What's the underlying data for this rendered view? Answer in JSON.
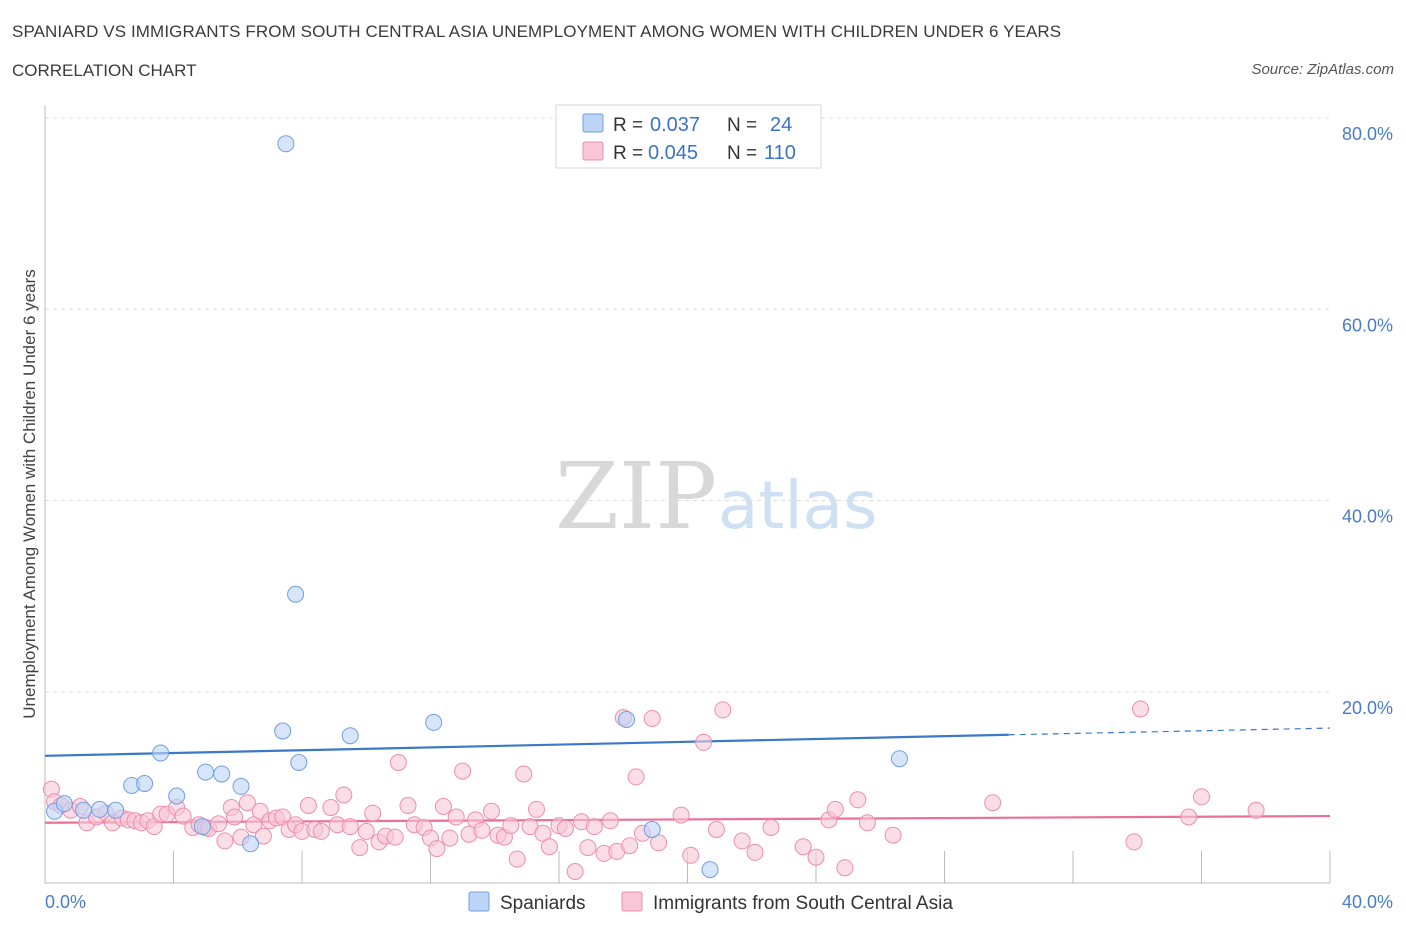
{
  "header": {
    "title": "SPANIARD VS IMMIGRANTS FROM SOUTH CENTRAL ASIA UNEMPLOYMENT AMONG WOMEN WITH CHILDREN UNDER 6 YEARS",
    "subtitle": "CORRELATION CHART",
    "source": "Source: ZipAtlas.com"
  },
  "watermark": {
    "zip": "ZIP",
    "atlas": "atlas"
  },
  "legend": {
    "rows": [
      {
        "r_label": "R = ",
        "r_value": "0.037",
        "n_label": "N = ",
        "n_value": "24"
      },
      {
        "r_label": "R = ",
        "r_value": "0.045",
        "n_label": "N = ",
        "n_value": "110"
      }
    ]
  },
  "colors": {
    "spaniards_fill": "#bcd4f6",
    "spaniards_stroke": "#6f9fe0",
    "spaniards_line": "#3a78c8",
    "immigrants_fill": "#f8c6d6",
    "immigrants_stroke": "#ec8fac",
    "immigrants_line": "#e8709a",
    "grid": "#dddddd",
    "tick": "#4a7cc9"
  },
  "chart_data": {
    "type": "scatter",
    "xlabel": "",
    "ylabel": "Unemployment Among Women with Children Under 6 years",
    "xlim": [
      0,
      40
    ],
    "ylim": [
      0,
      80
    ],
    "x_tick_labels": [
      "0.0%",
      "40.0%"
    ],
    "y_ticks": [
      20,
      40,
      60,
      80
    ],
    "y_tick_labels": [
      "20.0%",
      "40.0%",
      "60.0%",
      "80.0%"
    ],
    "grid": true,
    "legend_position": "top-center",
    "series": [
      {
        "name": "Spaniards",
        "r": 0.037,
        "n": 24,
        "trend": {
          "x_start": 0,
          "y_start": 13.3,
          "x_solid_end": 30,
          "y_solid_end": 15.5,
          "x_end": 40,
          "y_end": 16.2
        },
        "points": [
          [
            0.3,
            7.5
          ],
          [
            0.6,
            8.3
          ],
          [
            1.2,
            7.6
          ],
          [
            1.7,
            7.7
          ],
          [
            2.2,
            7.6
          ],
          [
            2.7,
            10.2
          ],
          [
            3.1,
            10.4
          ],
          [
            3.6,
            13.6
          ],
          [
            4.1,
            9.1
          ],
          [
            4.9,
            5.9
          ],
          [
            5.0,
            11.6
          ],
          [
            5.5,
            11.4
          ],
          [
            6.1,
            10.1
          ],
          [
            6.4,
            4.1
          ],
          [
            7.4,
            15.9
          ],
          [
            7.5,
            77.3
          ],
          [
            7.8,
            30.2
          ],
          [
            7.9,
            12.6
          ],
          [
            9.5,
            15.4
          ],
          [
            12.1,
            16.8
          ],
          [
            18.1,
            17.1
          ],
          [
            18.9,
            5.6
          ],
          [
            20.7,
            1.4
          ],
          [
            26.6,
            13.0
          ]
        ]
      },
      {
        "name": "Immigrants from South Central Asia",
        "r": 0.045,
        "n": 110,
        "trend": {
          "x_start": 0,
          "y_start": 6.3,
          "x_end": 40,
          "y_end": 7.0
        },
        "points": [
          [
            0.2,
            9.8
          ],
          [
            0.3,
            8.5
          ],
          [
            0.5,
            8.1
          ],
          [
            0.8,
            7.6
          ],
          [
            1.1,
            8.0
          ],
          [
            1.3,
            6.3
          ],
          [
            1.6,
            6.9
          ],
          [
            1.9,
            7.3
          ],
          [
            2.1,
            6.3
          ],
          [
            2.4,
            6.8
          ],
          [
            2.6,
            6.6
          ],
          [
            2.8,
            6.5
          ],
          [
            3.0,
            6.3
          ],
          [
            3.2,
            6.5
          ],
          [
            3.4,
            5.9
          ],
          [
            3.6,
            7.2
          ],
          [
            3.8,
            7.2
          ],
          [
            4.1,
            7.9
          ],
          [
            4.3,
            7.0
          ],
          [
            4.6,
            5.8
          ],
          [
            4.8,
            6.1
          ],
          [
            5.0,
            5.8
          ],
          [
            5.1,
            5.7
          ],
          [
            5.4,
            6.2
          ],
          [
            5.6,
            4.4
          ],
          [
            5.8,
            7.9
          ],
          [
            5.9,
            6.9
          ],
          [
            6.1,
            4.8
          ],
          [
            6.3,
            8.4
          ],
          [
            6.5,
            6.1
          ],
          [
            6.7,
            7.5
          ],
          [
            6.8,
            4.9
          ],
          [
            7.0,
            6.5
          ],
          [
            7.2,
            6.8
          ],
          [
            7.4,
            6.9
          ],
          [
            7.6,
            5.6
          ],
          [
            7.8,
            6.1
          ],
          [
            8.0,
            5.4
          ],
          [
            8.2,
            8.1
          ],
          [
            8.4,
            5.6
          ],
          [
            8.6,
            5.4
          ],
          [
            8.9,
            7.9
          ],
          [
            9.1,
            6.1
          ],
          [
            9.3,
            9.2
          ],
          [
            9.5,
            5.9
          ],
          [
            9.8,
            3.7
          ],
          [
            10.0,
            5.4
          ],
          [
            10.2,
            7.3
          ],
          [
            10.4,
            4.3
          ],
          [
            10.6,
            4.9
          ],
          [
            10.9,
            4.8
          ],
          [
            11.0,
            12.6
          ],
          [
            11.3,
            8.1
          ],
          [
            11.5,
            6.1
          ],
          [
            11.8,
            5.8
          ],
          [
            12.0,
            4.7
          ],
          [
            12.2,
            3.6
          ],
          [
            12.4,
            8.0
          ],
          [
            12.6,
            4.7
          ],
          [
            12.8,
            6.9
          ],
          [
            13.0,
            11.7
          ],
          [
            13.2,
            5.1
          ],
          [
            13.4,
            6.6
          ],
          [
            13.6,
            5.5
          ],
          [
            13.9,
            7.5
          ],
          [
            14.1,
            5.0
          ],
          [
            14.3,
            4.8
          ],
          [
            14.5,
            6.0
          ],
          [
            14.7,
            2.5
          ],
          [
            14.9,
            11.4
          ],
          [
            15.1,
            5.9
          ],
          [
            15.3,
            7.7
          ],
          [
            15.5,
            5.2
          ],
          [
            15.7,
            3.8
          ],
          [
            16.0,
            6.0
          ],
          [
            16.2,
            5.7
          ],
          [
            16.5,
            1.2
          ],
          [
            16.7,
            6.4
          ],
          [
            16.9,
            3.7
          ],
          [
            17.1,
            5.9
          ],
          [
            17.4,
            3.1
          ],
          [
            17.6,
            6.5
          ],
          [
            17.8,
            3.3
          ],
          [
            18.0,
            17.3
          ],
          [
            18.2,
            3.9
          ],
          [
            18.4,
            11.1
          ],
          [
            18.6,
            5.2
          ],
          [
            18.9,
            17.2
          ],
          [
            19.1,
            4.2
          ],
          [
            19.8,
            7.1
          ],
          [
            20.1,
            2.9
          ],
          [
            20.5,
            14.7
          ],
          [
            20.9,
            5.6
          ],
          [
            21.1,
            18.1
          ],
          [
            21.7,
            4.4
          ],
          [
            22.1,
            3.2
          ],
          [
            22.6,
            5.8
          ],
          [
            23.6,
            3.8
          ],
          [
            24.0,
            2.7
          ],
          [
            24.4,
            6.6
          ],
          [
            24.6,
            7.7
          ],
          [
            24.9,
            1.6
          ],
          [
            25.3,
            8.7
          ],
          [
            25.6,
            6.3
          ],
          [
            26.4,
            5.0
          ],
          [
            29.5,
            8.4
          ],
          [
            33.9,
            4.3
          ],
          [
            34.1,
            18.2
          ],
          [
            35.6,
            6.9
          ],
          [
            36.0,
            9.0
          ],
          [
            37.7,
            7.6
          ]
        ]
      }
    ]
  },
  "bottom_legend": {
    "spaniards": "Spaniards",
    "immigrants": "Immigrants from South Central Asia"
  }
}
